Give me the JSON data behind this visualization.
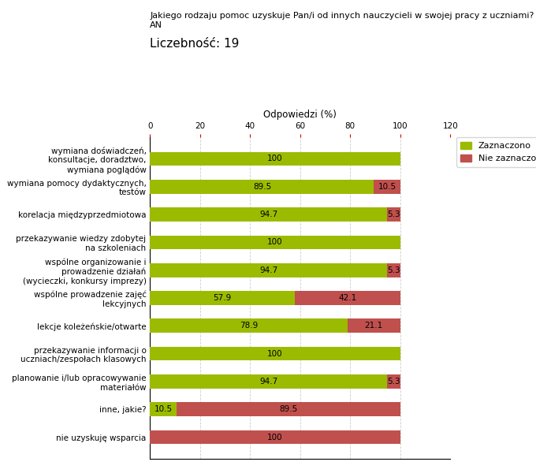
{
  "title_line1": "Jakiego rodzaju pomoc uzyskuje Pan/i od innych nauczycieli w swojej pracy z uczniami?",
  "title_line2": "AN",
  "subtitle": "Liczebność: 19",
  "xlabel": "Odpowiedzi (%)",
  "xlim": [
    0,
    120
  ],
  "xticks": [
    0,
    20,
    40,
    60,
    80,
    100,
    120
  ],
  "color_yes": "#9bbb00",
  "color_no": "#c0504d",
  "legend_yes": "Zaznaczono",
  "legend_no": "Nie zaznaczono",
  "categories": [
    "wymiana doświadczeń,\nkonsultacje, doradztwo,\nwymiana poglądów",
    "wymiana pomocy dydaktycznych,\ntestów",
    "korelacja międzyprzedmiotowa",
    "przekazywanie wiedzy zdobytej\nna szkoleniach",
    "wspólne organizowanie i\nprowadzenie działań\n(wycieczki, konkursy imprezy)",
    "wspólne prowadzenie zajęć\nlekcyjnych",
    "lekcje koleżeńskie/otwarte",
    "przekazywanie informacji o\nuczniach/zespołach klasowych",
    "planowanie i/lub opracowywanie\nmateriałów",
    "inne, jakie?",
    "nie uzyskuję wsparcia"
  ],
  "values_yes": [
    100,
    89.5,
    94.7,
    100,
    94.7,
    57.9,
    78.9,
    100,
    94.7,
    10.5,
    0
  ],
  "values_no": [
    0,
    10.5,
    5.3,
    0,
    5.3,
    42.1,
    21.1,
    0,
    5.3,
    89.5,
    100
  ],
  "bar_height": 0.5,
  "label_fontsize": 7.5,
  "tick_fontsize": 7.5,
  "xlabel_fontsize": 8.5,
  "title_fontsize": 8.0,
  "subtitle_fontsize": 11.0
}
